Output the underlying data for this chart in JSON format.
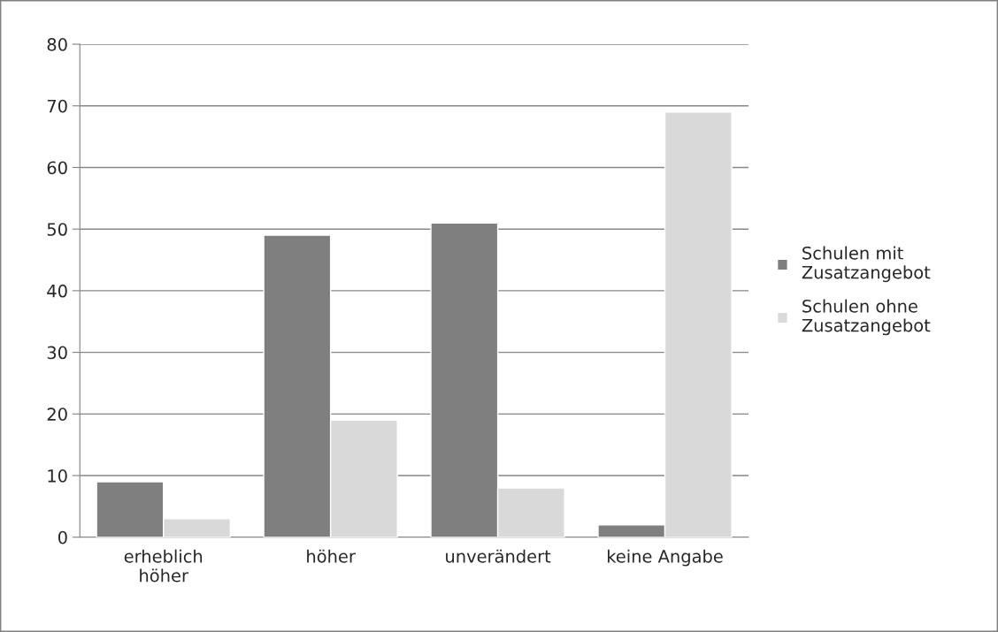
{
  "chart_data": {
    "type": "bar",
    "categories": [
      "erheblich\nhöher",
      "höher",
      "unverändert",
      "keine Angabe"
    ],
    "series": [
      {
        "name": "Schulen mit\nZusatzangebot",
        "color": "#7f7f7f",
        "values": [
          9,
          49,
          51,
          2
        ]
      },
      {
        "name": "Schulen ohne\nZusatzangebot",
        "color": "#d9d9d9",
        "values": [
          3,
          19,
          8,
          69
        ]
      }
    ],
    "ylim": [
      0,
      80
    ],
    "yticks": [
      0,
      10,
      20,
      30,
      40,
      50,
      60,
      70,
      80
    ],
    "grid": "y",
    "legend": "right"
  }
}
